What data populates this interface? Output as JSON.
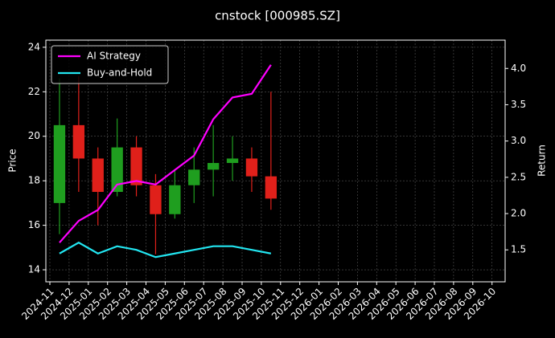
{
  "chart_data": {
    "type": "candlestick",
    "title": "cnstock [000985.SZ]",
    "ylabel": "Price",
    "y2label": "Return",
    "categories": [
      "2024-11",
      "2024-12",
      "2025-01",
      "2025-02",
      "2025-03",
      "2025-04",
      "2025-05",
      "2025-06",
      "2025-07",
      "2025-08",
      "2025-09",
      "2025-10",
      "2025-11",
      "2025-12",
      "2026-01",
      "2026-02",
      "2026-03",
      "2026-04",
      "2026-05",
      "2026-06",
      "2026-07",
      "2026-08",
      "2026-09",
      "2026-10"
    ],
    "x": [
      "2024-11",
      "2024-12",
      "2025-01",
      "2025-02",
      "2025-03",
      "2025-04",
      "2025-05",
      "2025-06",
      "2025-07",
      "2025-08",
      "2025-09",
      "2025-10"
    ],
    "open": [
      17.0,
      20.5,
      19.0,
      17.5,
      19.5,
      17.8,
      16.5,
      17.8,
      18.5,
      18.8,
      19.0,
      18.2
    ],
    "high": [
      22.6,
      22.7,
      19.5,
      20.8,
      20.0,
      18.3,
      18.5,
      19.5,
      20.5,
      20.0,
      19.5,
      22.0
    ],
    "low": [
      15.6,
      17.5,
      16.0,
      17.3,
      17.3,
      14.7,
      16.3,
      17.0,
      17.3,
      18.0,
      17.5,
      16.7
    ],
    "close": [
      20.5,
      19.0,
      17.5,
      19.5,
      17.8,
      16.5,
      17.8,
      18.5,
      18.8,
      19.0,
      18.2,
      17.2
    ],
    "up_color": "#1f9e1f",
    "down_color": "#e0201a",
    "ylim": [
      13.46,
      24.32
    ],
    "yticks": [
      14,
      16,
      18,
      20,
      22,
      24
    ],
    "y2lim": [
      1.06,
      4.39
    ],
    "y2ticks": [
      1.5,
      {
        "value": 2.0,
        "label": "2.0"
      },
      2.5,
      {
        "value": 3.0,
        "label": "3.0"
      },
      3.5,
      {
        "value": 4.0,
        "label": "4.0"
      }
    ],
    "series": [
      {
        "name": "AI Strategy",
        "color": "#ff00ff",
        "axis": "y2",
        "values": [
          1.6,
          1.9,
          2.05,
          2.4,
          2.45,
          2.4,
          2.6,
          2.8,
          3.3,
          3.6,
          3.65,
          4.05
        ]
      },
      {
        "name": "Buy-and-Hold",
        "color": "#22e5f0",
        "axis": "y2",
        "values": [
          1.45,
          1.6,
          1.45,
          1.55,
          1.5,
          1.4,
          1.45,
          1.5,
          1.55,
          1.55,
          1.5,
          1.45
        ]
      }
    ],
    "grid": true,
    "legend": "upper left"
  }
}
